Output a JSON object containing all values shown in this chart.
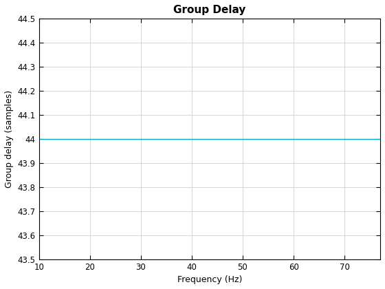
{
  "title": "Group Delay",
  "xlabel": "Frequency (Hz)",
  "ylabel": "Group delay (samples)",
  "xlim": [
    10,
    77
  ],
  "ylim": [
    43.5,
    44.5
  ],
  "xticks": [
    10,
    20,
    30,
    40,
    50,
    60,
    70
  ],
  "yticks": [
    43.5,
    43.6,
    43.7,
    43.8,
    43.9,
    44.0,
    44.1,
    44.2,
    44.3,
    44.4,
    44.5
  ],
  "ytick_labels": [
    "43.5",
    "43.6",
    "43.7",
    "43.8",
    "43.9",
    "44",
    "44.1",
    "44.2",
    "44.3",
    "44.4",
    "44.5"
  ],
  "line_x": [
    10,
    77
  ],
  "line_y": [
    44.0,
    44.0
  ],
  "line_color": "#00AACC",
  "line_width": 1.0,
  "grid_color": "#D0D0D0",
  "background_color": "#FFFFFF",
  "title_fontsize": 11,
  "label_fontsize": 9,
  "tick_fontsize": 8.5,
  "figsize": [
    5.6,
    4.2
  ],
  "dpi": 100
}
